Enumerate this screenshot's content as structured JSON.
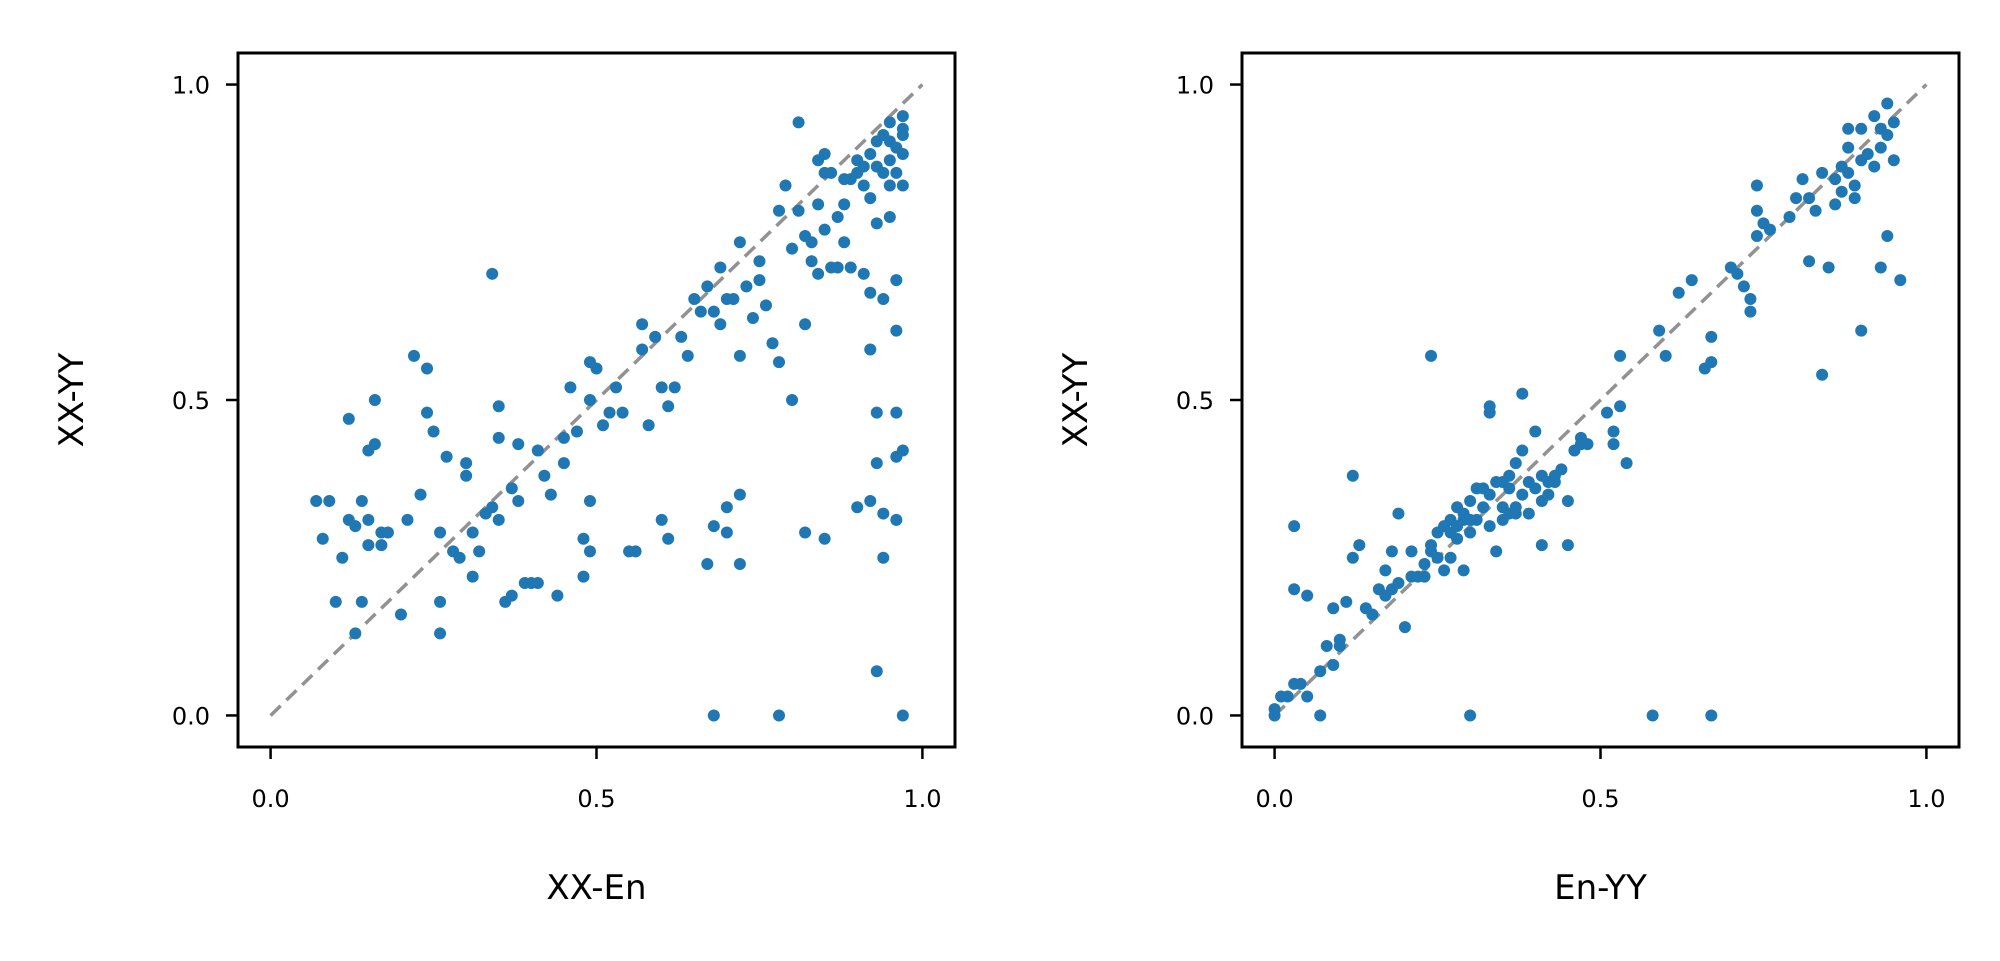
{
  "colors": {
    "point": "#1f77b4",
    "reference_line": "#929292",
    "axes": "#000000",
    "background": "#ffffff"
  },
  "chart_data": [
    {
      "type": "scatter",
      "xlabel": "XX-En",
      "ylabel": "XX-YY",
      "xlim": [
        -0.05,
        1.05
      ],
      "ylim": [
        -0.05,
        1.05
      ],
      "xticks": [
        0.0,
        0.5,
        1.0
      ],
      "yticks": [
        0.0,
        0.5,
        1.0
      ],
      "xtick_labels": [
        "0.0",
        "0.5",
        "1.0"
      ],
      "ytick_labels": [
        "0.0",
        "0.5",
        "1.0"
      ],
      "reference_line": {
        "from": [
          0,
          0
        ],
        "to": [
          1,
          1
        ],
        "style": "dashed"
      },
      "grid": false,
      "points": [
        [
          0.07,
          0.34
        ],
        [
          0.08,
          0.28
        ],
        [
          0.09,
          0.34
        ],
        [
          0.1,
          0.18
        ],
        [
          0.11,
          0.25
        ],
        [
          0.12,
          0.47
        ],
        [
          0.12,
          0.31
        ],
        [
          0.13,
          0.3
        ],
        [
          0.13,
          0.13
        ],
        [
          0.14,
          0.18
        ],
        [
          0.14,
          0.34
        ],
        [
          0.15,
          0.31
        ],
        [
          0.15,
          0.27
        ],
        [
          0.15,
          0.42
        ],
        [
          0.16,
          0.5
        ],
        [
          0.16,
          0.43
        ],
        [
          0.17,
          0.29
        ],
        [
          0.17,
          0.27
        ],
        [
          0.18,
          0.29
        ],
        [
          0.2,
          0.16
        ],
        [
          0.21,
          0.31
        ],
        [
          0.22,
          0.57
        ],
        [
          0.23,
          0.35
        ],
        [
          0.24,
          0.55
        ],
        [
          0.24,
          0.48
        ],
        [
          0.25,
          0.45
        ],
        [
          0.26,
          0.29
        ],
        [
          0.26,
          0.18
        ],
        [
          0.26,
          0.13
        ],
        [
          0.27,
          0.41
        ],
        [
          0.28,
          0.26
        ],
        [
          0.29,
          0.25
        ],
        [
          0.3,
          0.4
        ],
        [
          0.3,
          0.38
        ],
        [
          0.31,
          0.29
        ],
        [
          0.31,
          0.22
        ],
        [
          0.32,
          0.26
        ],
        [
          0.33,
          0.32
        ],
        [
          0.34,
          0.7
        ],
        [
          0.34,
          0.33
        ],
        [
          0.35,
          0.44
        ],
        [
          0.35,
          0.49
        ],
        [
          0.35,
          0.31
        ],
        [
          0.36,
          0.18
        ],
        [
          0.37,
          0.19
        ],
        [
          0.37,
          0.36
        ],
        [
          0.38,
          0.43
        ],
        [
          0.38,
          0.34
        ],
        [
          0.39,
          0.21
        ],
        [
          0.4,
          0.21
        ],
        [
          0.41,
          0.21
        ],
        [
          0.41,
          0.42
        ],
        [
          0.42,
          0.38
        ],
        [
          0.43,
          0.35
        ],
        [
          0.44,
          0.19
        ],
        [
          0.45,
          0.44
        ],
        [
          0.45,
          0.4
        ],
        [
          0.46,
          0.52
        ],
        [
          0.47,
          0.45
        ],
        [
          0.48,
          0.22
        ],
        [
          0.48,
          0.28
        ],
        [
          0.49,
          0.34
        ],
        [
          0.49,
          0.26
        ],
        [
          0.49,
          0.56
        ],
        [
          0.49,
          0.5
        ],
        [
          0.5,
          0.55
        ],
        [
          0.51,
          0.46
        ],
        [
          0.52,
          0.48
        ],
        [
          0.53,
          0.52
        ],
        [
          0.54,
          0.48
        ],
        [
          0.55,
          0.26
        ],
        [
          0.56,
          0.26
        ],
        [
          0.57,
          0.58
        ],
        [
          0.57,
          0.62
        ],
        [
          0.58,
          0.46
        ],
        [
          0.59,
          0.6
        ],
        [
          0.6,
          0.52
        ],
        [
          0.6,
          0.31
        ],
        [
          0.61,
          0.28
        ],
        [
          0.61,
          0.49
        ],
        [
          0.62,
          0.52
        ],
        [
          0.63,
          0.6
        ],
        [
          0.64,
          0.57
        ],
        [
          0.65,
          0.66
        ],
        [
          0.66,
          0.64
        ],
        [
          0.67,
          0.68
        ],
        [
          0.67,
          0.24
        ],
        [
          0.68,
          0.3
        ],
        [
          0.68,
          0.64
        ],
        [
          0.68,
          0.0
        ],
        [
          0.69,
          0.62
        ],
        [
          0.69,
          0.71
        ],
        [
          0.7,
          0.66
        ],
        [
          0.7,
          0.33
        ],
        [
          0.7,
          0.29
        ],
        [
          0.71,
          0.66
        ],
        [
          0.72,
          0.57
        ],
        [
          0.72,
          0.75
        ],
        [
          0.72,
          0.35
        ],
        [
          0.72,
          0.24
        ],
        [
          0.73,
          0.68
        ],
        [
          0.74,
          0.63
        ],
        [
          0.75,
          0.69
        ],
        [
          0.75,
          0.72
        ],
        [
          0.76,
          0.65
        ],
        [
          0.77,
          0.59
        ],
        [
          0.78,
          0.8
        ],
        [
          0.78,
          0.56
        ],
        [
          0.78,
          0.0
        ],
        [
          0.79,
          0.84
        ],
        [
          0.8,
          0.5
        ],
        [
          0.8,
          0.74
        ],
        [
          0.81,
          0.8
        ],
        [
          0.81,
          0.94
        ],
        [
          0.82,
          0.76
        ],
        [
          0.82,
          0.62
        ],
        [
          0.82,
          0.29
        ],
        [
          0.83,
          0.72
        ],
        [
          0.83,
          0.75
        ],
        [
          0.84,
          0.81
        ],
        [
          0.84,
          0.7
        ],
        [
          0.84,
          0.88
        ],
        [
          0.85,
          0.86
        ],
        [
          0.85,
          0.89
        ],
        [
          0.85,
          0.77
        ],
        [
          0.85,
          0.28
        ],
        [
          0.86,
          0.71
        ],
        [
          0.86,
          0.86
        ],
        [
          0.87,
          0.79
        ],
        [
          0.87,
          0.71
        ],
        [
          0.88,
          0.85
        ],
        [
          0.88,
          0.81
        ],
        [
          0.88,
          0.75
        ],
        [
          0.89,
          0.85
        ],
        [
          0.89,
          0.71
        ],
        [
          0.9,
          0.88
        ],
        [
          0.9,
          0.86
        ],
        [
          0.9,
          0.33
        ],
        [
          0.91,
          0.84
        ],
        [
          0.91,
          0.87
        ],
        [
          0.91,
          0.7
        ],
        [
          0.92,
          0.89
        ],
        [
          0.92,
          0.82
        ],
        [
          0.92,
          0.67
        ],
        [
          0.92,
          0.58
        ],
        [
          0.92,
          0.34
        ],
        [
          0.93,
          0.91
        ],
        [
          0.93,
          0.87
        ],
        [
          0.93,
          0.78
        ],
        [
          0.93,
          0.48
        ],
        [
          0.93,
          0.4
        ],
        [
          0.93,
          0.07
        ],
        [
          0.94,
          0.92
        ],
        [
          0.94,
          0.86
        ],
        [
          0.94,
          0.66
        ],
        [
          0.94,
          0.32
        ],
        [
          0.94,
          0.25
        ],
        [
          0.95,
          0.94
        ],
        [
          0.95,
          0.88
        ],
        [
          0.95,
          0.79
        ],
        [
          0.95,
          0.91
        ],
        [
          0.95,
          0.84
        ],
        [
          0.96,
          0.9
        ],
        [
          0.96,
          0.86
        ],
        [
          0.96,
          0.69
        ],
        [
          0.96,
          0.61
        ],
        [
          0.96,
          0.48
        ],
        [
          0.96,
          0.41
        ],
        [
          0.96,
          0.31
        ],
        [
          0.97,
          0.95
        ],
        [
          0.97,
          0.92
        ],
        [
          0.97,
          0.93
        ],
        [
          0.97,
          0.89
        ],
        [
          0.97,
          0.84
        ],
        [
          0.97,
          0.42
        ],
        [
          0.97,
          0.0
        ]
      ]
    },
    {
      "type": "scatter",
      "xlabel": "En-YY",
      "ylabel": "XX-YY",
      "xlim": [
        -0.05,
        1.05
      ],
      "ylim": [
        -0.05,
        1.05
      ],
      "xticks": [
        0.0,
        0.5,
        1.0
      ],
      "yticks": [
        0.0,
        0.5,
        1.0
      ],
      "xtick_labels": [
        "0.0",
        "0.5",
        "1.0"
      ],
      "ytick_labels": [
        "0.0",
        "0.5",
        "1.0"
      ],
      "reference_line": {
        "from": [
          0,
          0
        ],
        "to": [
          1,
          1
        ],
        "style": "dashed"
      },
      "grid": false,
      "points": [
        [
          0.0,
          0.0
        ],
        [
          0.0,
          0.01
        ],
        [
          0.01,
          0.03
        ],
        [
          0.02,
          0.03
        ],
        [
          0.03,
          0.05
        ],
        [
          0.03,
          0.3
        ],
        [
          0.03,
          0.2
        ],
        [
          0.04,
          0.05
        ],
        [
          0.05,
          0.19
        ],
        [
          0.05,
          0.03
        ],
        [
          0.07,
          0.07
        ],
        [
          0.07,
          0.0
        ],
        [
          0.08,
          0.11
        ],
        [
          0.09,
          0.08
        ],
        [
          0.09,
          0.17
        ],
        [
          0.1,
          0.12
        ],
        [
          0.1,
          0.11
        ],
        [
          0.11,
          0.18
        ],
        [
          0.12,
          0.25
        ],
        [
          0.12,
          0.38
        ],
        [
          0.13,
          0.27
        ],
        [
          0.14,
          0.17
        ],
        [
          0.15,
          0.16
        ],
        [
          0.16,
          0.2
        ],
        [
          0.17,
          0.19
        ],
        [
          0.17,
          0.23
        ],
        [
          0.18,
          0.2
        ],
        [
          0.18,
          0.26
        ],
        [
          0.19,
          0.32
        ],
        [
          0.19,
          0.21
        ],
        [
          0.2,
          0.14
        ],
        [
          0.21,
          0.22
        ],
        [
          0.21,
          0.26
        ],
        [
          0.22,
          0.22
        ],
        [
          0.23,
          0.22
        ],
        [
          0.23,
          0.24
        ],
        [
          0.24,
          0.26
        ],
        [
          0.24,
          0.27
        ],
        [
          0.24,
          0.57
        ],
        [
          0.25,
          0.29
        ],
        [
          0.25,
          0.25
        ],
        [
          0.26,
          0.3
        ],
        [
          0.26,
          0.23
        ],
        [
          0.27,
          0.31
        ],
        [
          0.27,
          0.29
        ],
        [
          0.27,
          0.25
        ],
        [
          0.28,
          0.33
        ],
        [
          0.28,
          0.3
        ],
        [
          0.28,
          0.28
        ],
        [
          0.29,
          0.32
        ],
        [
          0.29,
          0.31
        ],
        [
          0.29,
          0.23
        ],
        [
          0.3,
          0.34
        ],
        [
          0.3,
          0.31
        ],
        [
          0.3,
          0.29
        ],
        [
          0.3,
          0.0
        ],
        [
          0.31,
          0.36
        ],
        [
          0.31,
          0.31
        ],
        [
          0.32,
          0.33
        ],
        [
          0.32,
          0.36
        ],
        [
          0.33,
          0.35
        ],
        [
          0.33,
          0.48
        ],
        [
          0.33,
          0.49
        ],
        [
          0.33,
          0.3
        ],
        [
          0.34,
          0.37
        ],
        [
          0.34,
          0.26
        ],
        [
          0.35,
          0.33
        ],
        [
          0.35,
          0.37
        ],
        [
          0.35,
          0.31
        ],
        [
          0.36,
          0.38
        ],
        [
          0.36,
          0.36
        ],
        [
          0.36,
          0.32
        ],
        [
          0.37,
          0.4
        ],
        [
          0.37,
          0.33
        ],
        [
          0.37,
          0.32
        ],
        [
          0.38,
          0.51
        ],
        [
          0.38,
          0.35
        ],
        [
          0.38,
          0.42
        ],
        [
          0.39,
          0.37
        ],
        [
          0.39,
          0.32
        ],
        [
          0.4,
          0.36
        ],
        [
          0.4,
          0.45
        ],
        [
          0.41,
          0.38
        ],
        [
          0.41,
          0.27
        ],
        [
          0.41,
          0.34
        ],
        [
          0.42,
          0.37
        ],
        [
          0.42,
          0.35
        ],
        [
          0.43,
          0.38
        ],
        [
          0.43,
          0.37
        ],
        [
          0.44,
          0.39
        ],
        [
          0.45,
          0.27
        ],
        [
          0.45,
          0.34
        ],
        [
          0.46,
          0.42
        ],
        [
          0.47,
          0.44
        ],
        [
          0.47,
          0.43
        ],
        [
          0.48,
          0.43
        ],
        [
          0.51,
          0.48
        ],
        [
          0.52,
          0.45
        ],
        [
          0.52,
          0.43
        ],
        [
          0.53,
          0.49
        ],
        [
          0.53,
          0.57
        ],
        [
          0.54,
          0.4
        ],
        [
          0.58,
          0.0
        ],
        [
          0.59,
          0.61
        ],
        [
          0.6,
          0.57
        ],
        [
          0.62,
          0.67
        ],
        [
          0.64,
          0.69
        ],
        [
          0.66,
          0.55
        ],
        [
          0.67,
          0.6
        ],
        [
          0.67,
          0.0
        ],
        [
          0.67,
          0.56
        ],
        [
          0.7,
          0.71
        ],
        [
          0.71,
          0.7
        ],
        [
          0.72,
          0.68
        ],
        [
          0.73,
          0.64
        ],
        [
          0.73,
          0.66
        ],
        [
          0.74,
          0.76
        ],
        [
          0.74,
          0.8
        ],
        [
          0.74,
          0.84
        ],
        [
          0.75,
          0.78
        ],
        [
          0.76,
          0.77
        ],
        [
          0.79,
          0.79
        ],
        [
          0.8,
          0.82
        ],
        [
          0.81,
          0.85
        ],
        [
          0.82,
          0.82
        ],
        [
          0.82,
          0.72
        ],
        [
          0.83,
          0.8
        ],
        [
          0.84,
          0.54
        ],
        [
          0.84,
          0.86
        ],
        [
          0.85,
          0.71
        ],
        [
          0.86,
          0.85
        ],
        [
          0.86,
          0.81
        ],
        [
          0.87,
          0.87
        ],
        [
          0.87,
          0.83
        ],
        [
          0.88,
          0.86
        ],
        [
          0.88,
          0.9
        ],
        [
          0.88,
          0.93
        ],
        [
          0.89,
          0.84
        ],
        [
          0.89,
          0.82
        ],
        [
          0.9,
          0.61
        ],
        [
          0.9,
          0.88
        ],
        [
          0.9,
          0.93
        ],
        [
          0.91,
          0.89
        ],
        [
          0.92,
          0.95
        ],
        [
          0.92,
          0.87
        ],
        [
          0.93,
          0.9
        ],
        [
          0.93,
          0.93
        ],
        [
          0.93,
          0.71
        ],
        [
          0.94,
          0.97
        ],
        [
          0.94,
          0.92
        ],
        [
          0.94,
          0.76
        ],
        [
          0.95,
          0.94
        ],
        [
          0.95,
          0.88
        ],
        [
          0.96,
          0.69
        ]
      ]
    }
  ]
}
